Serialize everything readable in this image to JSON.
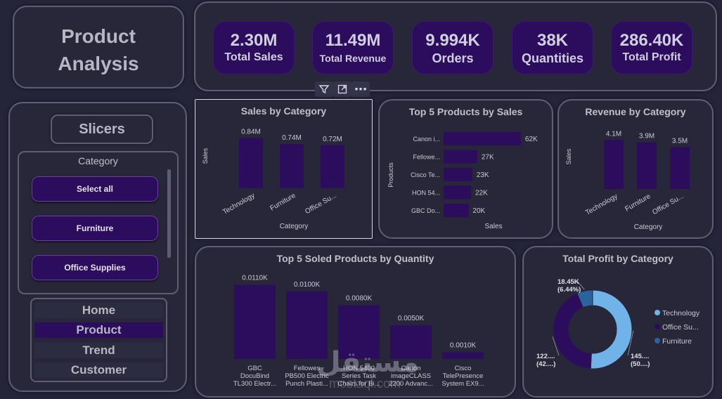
{
  "title": {
    "line1": "Product",
    "line2": "Analysis"
  },
  "kpis": [
    {
      "value": "2.30M",
      "label": "Total Sales"
    },
    {
      "value": "11.49M",
      "label": "Total Revenue"
    },
    {
      "value": "9.994K",
      "label": "Orders"
    },
    {
      "value": "38K",
      "label": "Quantities"
    },
    {
      "value": "286.40K",
      "label": "Total Profit"
    }
  ],
  "toolbar": {
    "filter_icon": "filter-icon",
    "focus_icon": "focus-mode-icon",
    "more_icon": "more-options-icon",
    "more_glyph": "⋯"
  },
  "slicers": {
    "title": "Slicers",
    "category_title": "Category",
    "items": [
      "Select all",
      "Furniture",
      "Office Supplies"
    ]
  },
  "nav": {
    "items": [
      "Home",
      "Product",
      "Trend",
      "Customer"
    ],
    "active": "Product"
  },
  "colors": {
    "bar": "#2c0c5c",
    "donut_technology": "#6fb3e8",
    "donut_office": "#2c0c5c",
    "donut_furniture": "#2b63a0",
    "background": "#25253a"
  },
  "watermark": {
    "text": "مستقل",
    "sub": "mostaql.com"
  },
  "chart_data": [
    {
      "id": "sales_by_category",
      "type": "bar",
      "title": "Sales by Category",
      "xlabel": "Category",
      "ylabel": "Sales",
      "categories": [
        "Technology",
        "Furniture",
        "Office Su..."
      ],
      "values": [
        0.84,
        0.74,
        0.72
      ],
      "value_labels": [
        "0.84M",
        "0.74M",
        "0.72M"
      ],
      "ylim": [
        0,
        1.0
      ]
    },
    {
      "id": "top5_products_sales",
      "type": "bar",
      "orientation": "horizontal",
      "title": "Top 5 Products by Sales",
      "xlabel": "Sales",
      "ylabel": "Products",
      "categories": [
        "Canon i...",
        "Fellowe...",
        "Cisco Te...",
        "HON 54...",
        "GBC Do..."
      ],
      "values": [
        62,
        27,
        23,
        22,
        20
      ],
      "value_labels": [
        "62K",
        "27K",
        "23K",
        "22K",
        "20K"
      ],
      "xlim": [
        0,
        70
      ]
    },
    {
      "id": "revenue_by_category",
      "type": "bar",
      "title": "Revenue by Category",
      "xlabel": "Category",
      "ylabel": "Sales",
      "categories": [
        "Technology",
        "Furniture",
        "Office Su..."
      ],
      "values": [
        4.1,
        3.9,
        3.5
      ],
      "value_labels": [
        "4.1M",
        "3.9M",
        "3.5M"
      ],
      "ylim": [
        0,
        5
      ]
    },
    {
      "id": "top5_sold_quantity",
      "type": "bar",
      "title": "Top 5 Soled Products by Quantity",
      "categories": [
        [
          "GBC",
          "DocuBind",
          "TL300 Electr..."
        ],
        [
          "Fellowes",
          "PB500 Electric",
          "Punch Plasti..."
        ],
        [
          "HON 5400",
          "Series Task",
          "Chairs for Bi..."
        ],
        [
          "Canon",
          "imageCLASS",
          "2200 Advanc..."
        ],
        [
          "Cisco",
          "TelePresence",
          "System EX9..."
        ]
      ],
      "values": [
        0.011,
        0.01,
        0.008,
        0.005,
        0.001
      ],
      "value_labels": [
        "0.0110K",
        "0.0100K",
        "0.0080K",
        "0.0050K",
        "0.0010K"
      ],
      "ylim": [
        0,
        0.012
      ]
    },
    {
      "id": "profit_by_category",
      "type": "pie",
      "donut": true,
      "title": "Total Profit by Category",
      "legend_position": "right",
      "slices": [
        {
          "name": "Technology",
          "value": 145.0,
          "percent": 50.0,
          "label": "145....",
          "sublabel": "(50....)"
        },
        {
          "name": "Office Su...",
          "value": 122.0,
          "percent": 42.0,
          "label": "122....",
          "sublabel": "(42....)"
        },
        {
          "name": "Furniture",
          "value": 18.45,
          "percent": 6.44,
          "label": "18.45K",
          "sublabel": "(6.44%)"
        }
      ]
    }
  ]
}
